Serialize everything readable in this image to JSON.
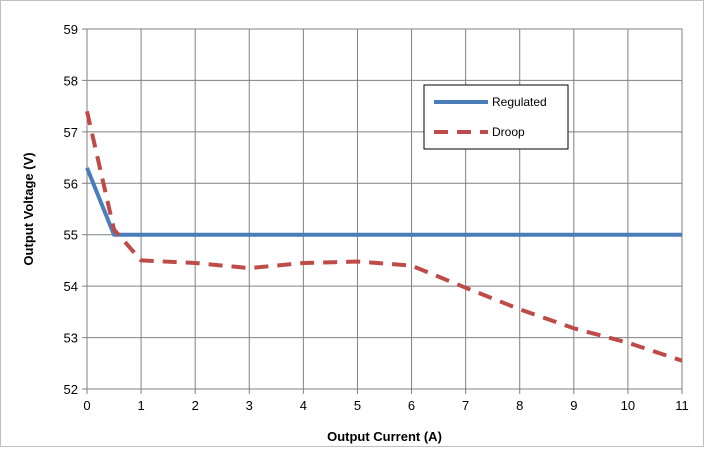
{
  "chart_data": {
    "type": "line",
    "xlabel": "Output Current (A)",
    "ylabel": "Output Voltage (V)",
    "xlim": [
      0,
      11
    ],
    "ylim": [
      52,
      59
    ],
    "xticks": [
      0,
      1,
      2,
      3,
      4,
      5,
      6,
      7,
      8,
      9,
      10,
      11
    ],
    "yticks": [
      52,
      53,
      54,
      55,
      56,
      57,
      58,
      59
    ],
    "grid": true,
    "legend_position": "top-right",
    "series": [
      {
        "name": "Regulated",
        "color": "#4a7ebb",
        "style": "solid",
        "x": [
          0,
          0.5,
          1,
          2,
          3,
          4,
          5,
          6,
          7,
          8,
          9,
          10,
          11
        ],
        "y": [
          56.3,
          55.0,
          55.0,
          55.0,
          55.0,
          55.0,
          55.0,
          55.0,
          55.0,
          55.0,
          55.0,
          55.0,
          55.0
        ]
      },
      {
        "name": "Droop",
        "color": "#be4b48",
        "style": "dashed",
        "x": [
          0,
          0.5,
          1,
          2,
          3,
          4,
          5,
          6,
          7,
          8,
          9,
          10,
          11
        ],
        "y": [
          57.4,
          55.1,
          54.5,
          54.45,
          54.35,
          54.45,
          54.48,
          54.4,
          53.97,
          53.55,
          53.18,
          52.9,
          52.55
        ]
      }
    ]
  }
}
